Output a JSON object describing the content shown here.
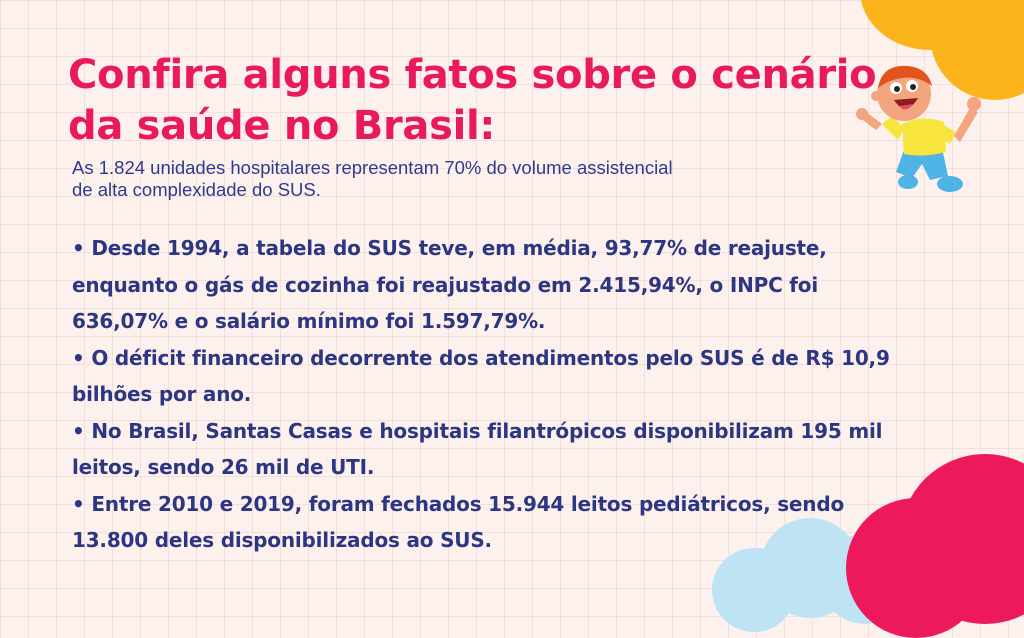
{
  "slide": {
    "title_line1": "Confira alguns fatos sobre o cenário",
    "title_line2": "da saúde no Brasil:",
    "subtitle_line1": "As 1.824 unidades hospitalares representam 70% do volume assistencial",
    "subtitle_line2": "de alta complexidade do SUS.",
    "facts": [
      {
        "line1": "• Desde 1994, a tabela do SUS teve, em média, 93,77% de reajuste,",
        "line2": "enquanto o gás de cozinha foi reajustado em 2.415,94%, o INPC foi",
        "line3": "636,07% e o salário mínimo foi 1.597,79%."
      },
      {
        "line1": "• O déficit financeiro decorrente dos atendimentos pelo SUS é de R$ 10,9",
        "line2": "bilhões por ano."
      },
      {
        "line1": "• No Brasil, Santas Casas e hospitais filantrópicos disponibilizam 195 mil",
        "line2": "leitos, sendo 26 mil de UTI."
      },
      {
        "line1": "• Entre 2010 e 2019, foram fechados 15.944 leitos pediátricos, sendo",
        "line2": "13.800 deles disponibilizados ao SUS."
      }
    ]
  },
  "decor": {
    "illustration": "jumping-child-illustration",
    "colors": {
      "background": "#fdf1ee",
      "title": "#e8195c",
      "text": "#2d3682",
      "cloud_yellow": "#fbb41b",
      "cloud_pink": "#ec1a5a",
      "cloud_blue": "#bde3f5"
    }
  }
}
